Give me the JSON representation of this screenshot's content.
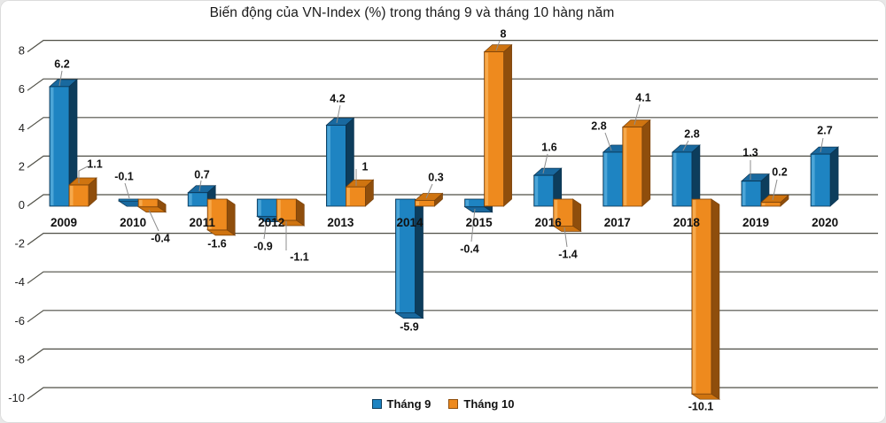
{
  "title": "Biến động của VN-Index (%) trong tháng 9 và tháng 10 hàng năm",
  "legend": {
    "items": [
      {
        "label": "Tháng 9",
        "color": "#1e84c2",
        "border": "#0d3d5c"
      },
      {
        "label": "Tháng 10",
        "color": "#ee8a1e",
        "border": "#8f4e0c"
      }
    ]
  },
  "colors": {
    "background": "#ffffff",
    "gridline": "#4f4f46",
    "text": "#111111",
    "leader": "#8c8c8c",
    "series": [
      {
        "name": "Tháng 9",
        "front": "#1e84c2",
        "highlight": "#55aada",
        "top": "#19699f",
        "side": "#0d3d5c",
        "edge": "#0a3350"
      },
      {
        "name": "Tháng 10",
        "front": "#ee8a1e",
        "highlight": "#f7ae55",
        "top": "#cf7410",
        "side": "#8f4e0c",
        "edge": "#7a420a"
      }
    ]
  },
  "chart_data": {
    "type": "bar",
    "style": "3d-column",
    "title": "Biến động của VN-Index (%) trong tháng 9 và tháng 10 hàng năm",
    "categories": [
      "2009",
      "2010",
      "2011",
      "2012",
      "2013",
      "2014",
      "2015",
      "2016",
      "2017",
      "2018",
      "2019",
      "2020"
    ],
    "series": [
      {
        "name": "Tháng 9",
        "color": "#1e84c2",
        "values": [
          6.2,
          -0.1,
          0.7,
          -0.9,
          4.2,
          -5.9,
          -0.4,
          1.6,
          2.8,
          2.8,
          1.3,
          2.7
        ]
      },
      {
        "name": "Tháng 10",
        "color": "#ee8a1e",
        "values": [
          1.1,
          -0.4,
          -1.6,
          -1.1,
          1,
          0.3,
          8,
          -1.4,
          4.1,
          -10.1,
          0.2,
          null
        ]
      }
    ],
    "y_ticks": [
      8,
      6,
      4,
      2,
      0,
      -2,
      -4,
      -6,
      -8,
      -10
    ],
    "ylim": [
      -10.5,
      9
    ],
    "xlabel": "",
    "ylabel": "",
    "grid": true,
    "data_labels": true,
    "legend_position": "bottom"
  }
}
